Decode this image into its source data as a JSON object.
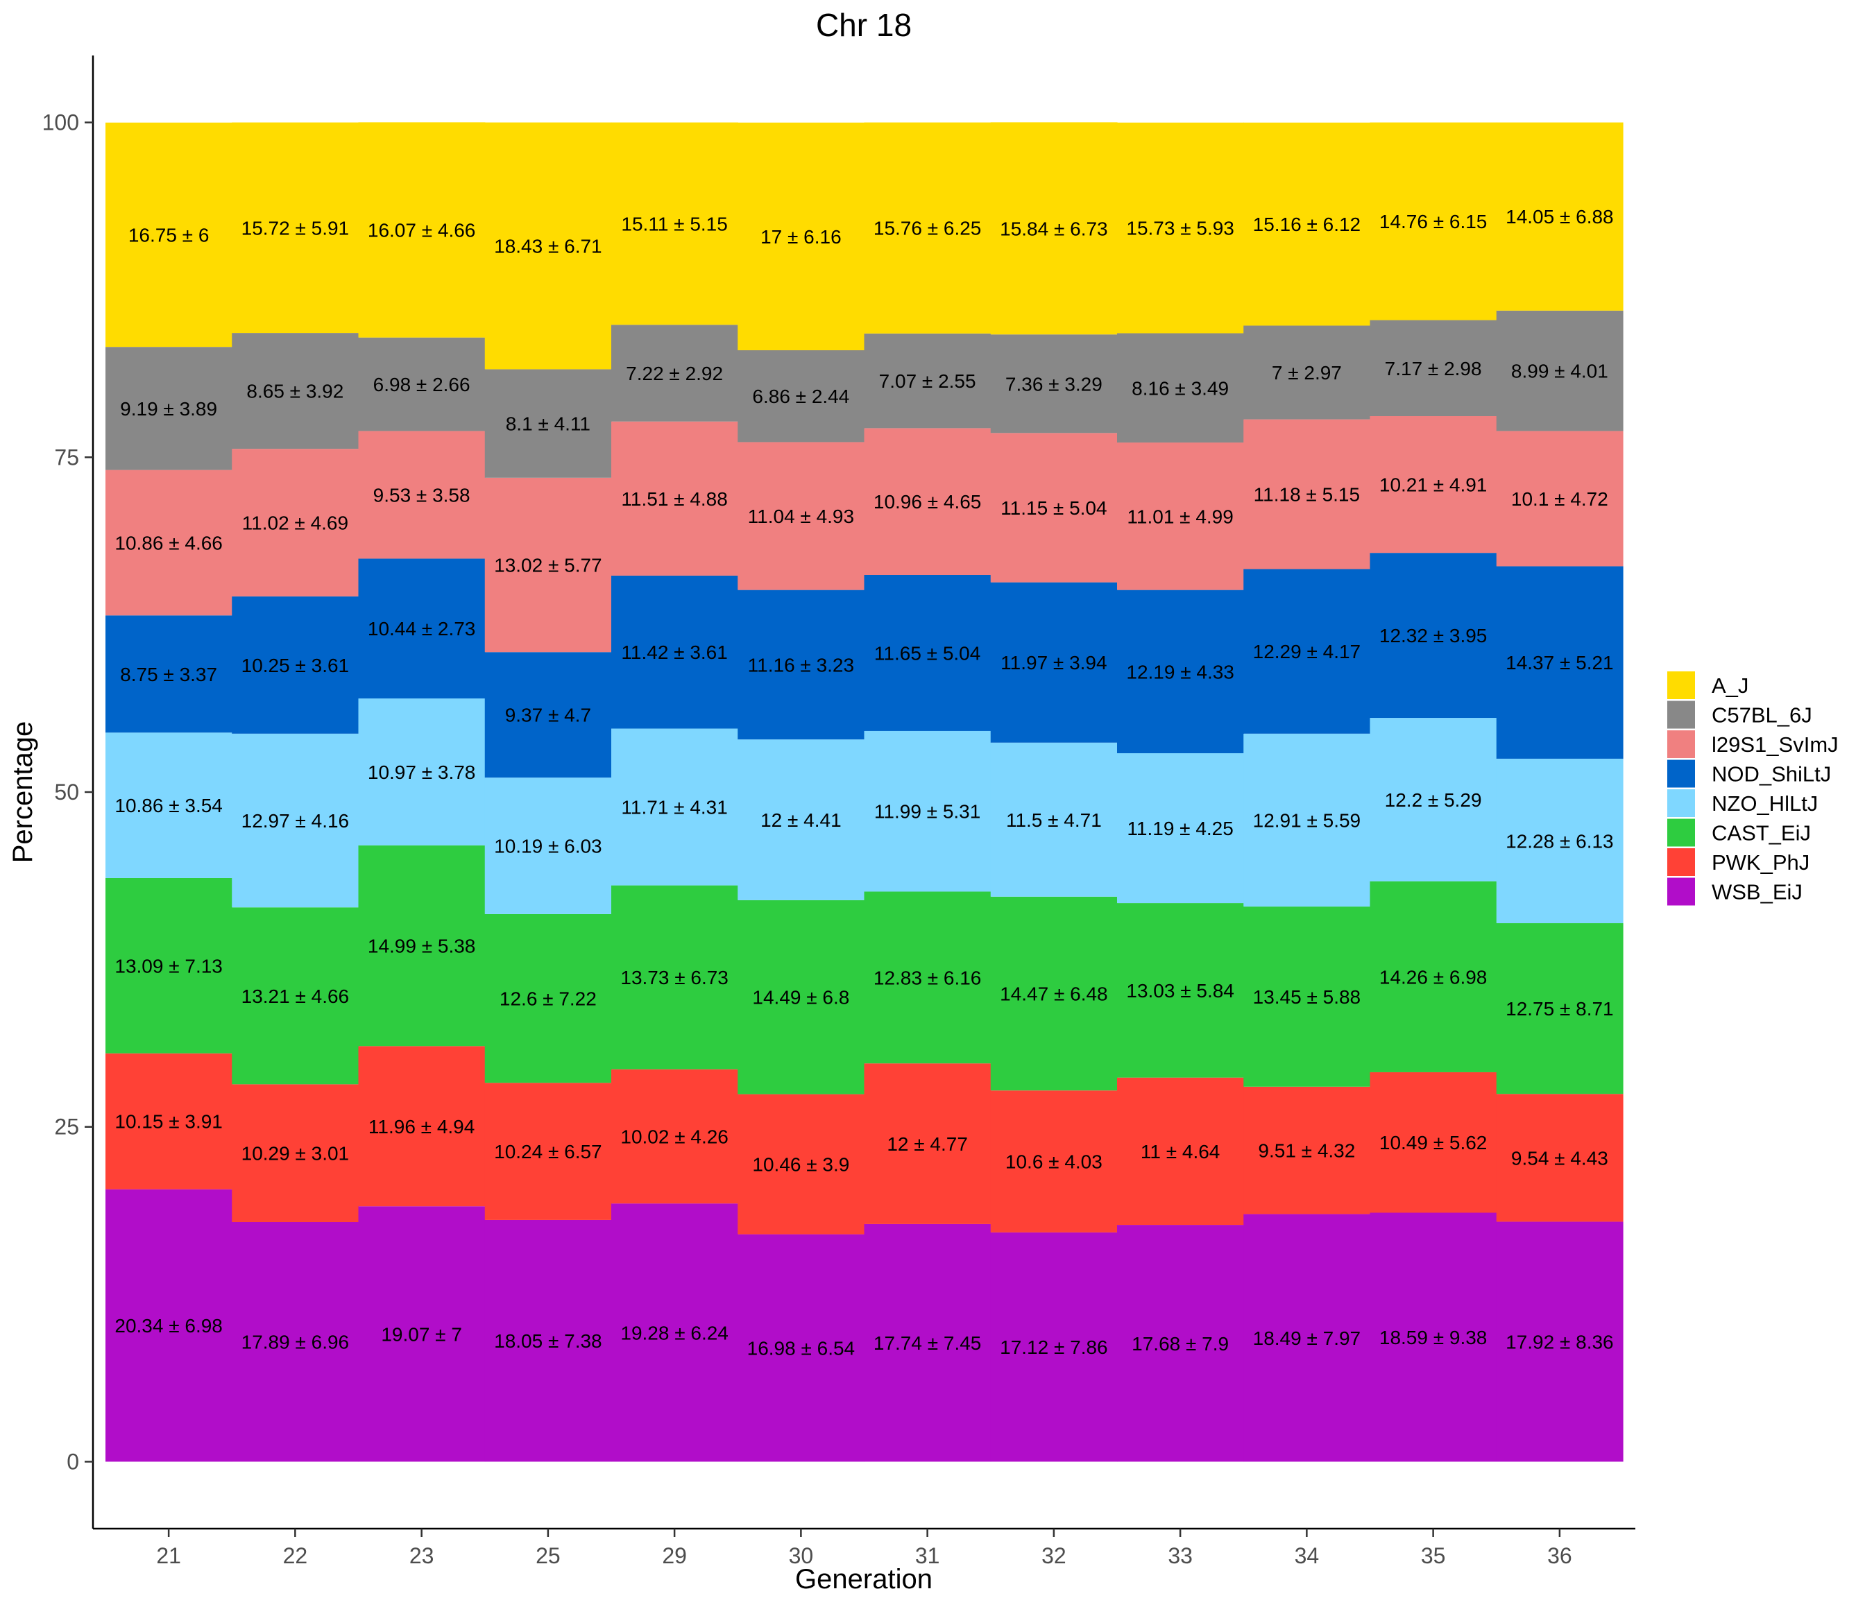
{
  "chart_data": {
    "type": "area",
    "title": "Chr 18",
    "xlabel": "Generation",
    "ylabel": "Percentage",
    "ylim": [
      -5,
      105
    ],
    "yticks": [
      0,
      25,
      50,
      75,
      100
    ],
    "categories": [
      "21",
      "22",
      "23",
      "25",
      "29",
      "30",
      "31",
      "32",
      "33",
      "34",
      "35",
      "36"
    ],
    "stack_order_bottom_to_top": [
      "WSB_EiJ",
      "PWK_PhJ",
      "CAST_EiJ",
      "NZO_HlLtJ",
      "NOD_ShiLtJ",
      "l29S1_SvImJ",
      "C57BL_6J",
      "A_J"
    ],
    "legend_position": "right",
    "series": [
      {
        "name": "A_J",
        "color": "#FFDC00",
        "values": [
          16.75,
          15.72,
          16.07,
          18.43,
          15.11,
          17.0,
          15.76,
          15.84,
          15.73,
          15.16,
          14.76,
          14.05
        ],
        "labels": [
          "16.75 ± 6",
          "15.72 ± 5.91",
          "16.07 ± 4.66",
          "18.43 ± 6.71",
          "15.11 ± 5.15",
          "17 ± 6.16",
          "15.76 ± 6.25",
          "15.84 ± 6.73",
          "15.73 ± 5.93",
          "15.16 ± 6.12",
          "14.76 ± 6.15",
          "14.05 ± 6.88"
        ]
      },
      {
        "name": "C57BL_6J",
        "color": "#888888",
        "values": [
          9.19,
          8.65,
          6.98,
          8.1,
          7.22,
          6.86,
          7.07,
          7.36,
          8.16,
          7.0,
          7.17,
          8.99
        ],
        "labels": [
          "9.19 ± 3.89",
          "8.65 ± 3.92",
          "6.98 ± 2.66",
          "8.1 ± 4.11",
          "7.22 ± 2.92",
          "6.86 ± 2.44",
          "7.07 ± 2.55",
          "7.36 ± 3.29",
          "8.16 ± 3.49",
          "7 ± 2.97",
          "7.17 ± 2.98",
          "8.99 ± 4.01"
        ]
      },
      {
        "name": "l29S1_SvImJ",
        "color": "#F08080",
        "values": [
          10.86,
          11.02,
          9.53,
          13.02,
          11.51,
          11.04,
          10.96,
          11.15,
          11.01,
          11.18,
          10.21,
          10.1
        ],
        "labels": [
          "10.86 ± 4.66",
          "11.02 ± 4.69",
          "9.53 ± 3.58",
          "13.02 ± 5.77",
          "11.51 ± 4.88",
          "11.04 ± 4.93",
          "10.96 ± 4.65",
          "11.15 ± 5.04",
          "11.01 ± 4.99",
          "11.18 ± 5.15",
          "10.21 ± 4.91",
          "10.1 ± 4.72"
        ]
      },
      {
        "name": "NOD_ShiLtJ",
        "color": "#0064C9",
        "values": [
          8.75,
          10.25,
          10.44,
          9.37,
          11.42,
          11.16,
          11.65,
          11.97,
          12.19,
          12.29,
          12.32,
          14.37
        ],
        "labels": [
          "8.75 ± 3.37",
          "10.25 ± 3.61",
          "10.44 ± 2.73",
          "9.37 ± 4.7",
          "11.42 ± 3.61",
          "11.16 ± 3.23",
          "11.65 ± 5.04",
          "11.97 ± 3.94",
          "12.19 ± 4.33",
          "12.29 ± 4.17",
          "12.32 ± 3.95",
          "14.37 ± 5.21"
        ]
      },
      {
        "name": "NZO_HlLtJ",
        "color": "#7FD7FF",
        "values": [
          10.86,
          12.97,
          10.97,
          10.19,
          11.71,
          12.0,
          11.99,
          11.5,
          11.19,
          12.91,
          12.2,
          12.28
        ],
        "labels": [
          "10.86 ± 3.54",
          "12.97 ± 4.16",
          "10.97 ± 3.78",
          "10.19 ± 6.03",
          "11.71 ± 4.31",
          "12 ± 4.41",
          "11.99 ± 5.31",
          "11.5 ± 4.71",
          "11.19 ± 4.25",
          "12.91 ± 5.59",
          "12.2 ± 5.29",
          "12.28 ± 6.13"
        ]
      },
      {
        "name": "CAST_EiJ",
        "color": "#2ECC40",
        "values": [
          13.09,
          13.21,
          14.99,
          12.6,
          13.73,
          14.49,
          12.83,
          14.47,
          13.03,
          13.45,
          14.26,
          12.75
        ],
        "labels": [
          "13.09 ± 7.13",
          "13.21 ± 4.66",
          "14.99 ± 5.38",
          "12.6 ± 7.22",
          "13.73 ± 6.73",
          "14.49 ± 6.8",
          "12.83 ± 6.16",
          "14.47 ± 6.48",
          "13.03 ± 5.84",
          "13.45 ± 5.88",
          "14.26 ± 6.98",
          "12.75 ± 8.71"
        ]
      },
      {
        "name": "PWK_PhJ",
        "color": "#FF4136",
        "values": [
          10.15,
          10.29,
          11.96,
          10.24,
          10.02,
          10.46,
          12.0,
          10.6,
          11.0,
          9.51,
          10.49,
          9.54
        ],
        "labels": [
          "10.15 ± 3.91",
          "10.29 ± 3.01",
          "11.96 ± 4.94",
          "10.24 ± 6.57",
          "10.02 ± 4.26",
          "10.46 ± 3.9",
          "12 ± 4.77",
          "10.6 ± 4.03",
          "11 ± 4.64",
          "9.51 ± 4.32",
          "10.49 ± 5.62",
          "9.54 ± 4.43"
        ]
      },
      {
        "name": "WSB_EiJ",
        "color": "#B10DC9",
        "values": [
          20.34,
          17.89,
          19.07,
          18.05,
          19.28,
          16.98,
          17.74,
          17.12,
          17.68,
          18.49,
          18.59,
          17.92
        ],
        "labels": [
          "20.34 ± 6.98",
          "17.89 ± 6.96",
          "19.07 ± 7",
          "18.05 ± 7.38",
          "19.28 ± 6.24",
          "16.98 ± 6.54",
          "17.74 ± 7.45",
          "17.12 ± 7.86",
          "17.68 ± 7.9",
          "18.49 ± 7.97",
          "18.59 ± 9.38",
          "17.92 ± 8.36"
        ]
      }
    ]
  }
}
